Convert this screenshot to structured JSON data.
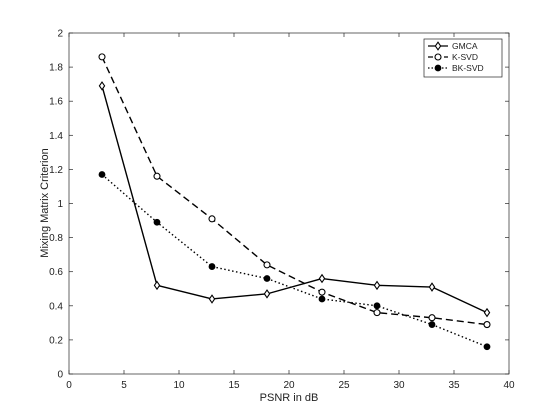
{
  "chart_data": {
    "type": "line",
    "title": "",
    "xlabel": "PSNR in dB",
    "ylabel": "Mixing Matrix Criterion",
    "xlim": [
      0,
      40
    ],
    "ylim": [
      0,
      2
    ],
    "xticks": [
      0,
      5,
      10,
      15,
      20,
      25,
      30,
      35,
      40
    ],
    "yticks": [
      0,
      0.2,
      0.4,
      0.6,
      0.8,
      1,
      1.2,
      1.4,
      1.6,
      1.8,
      2
    ],
    "xtick_labels": [
      "0",
      "5",
      "10",
      "15",
      "20",
      "25",
      "30",
      "35",
      "40"
    ],
    "ytick_labels": [
      "0",
      "0.2",
      "0.4",
      "0.6",
      "0.8",
      "1",
      "1.2",
      "1.4",
      "1.6",
      "1.8",
      "2"
    ],
    "grid": false,
    "legend_position": "top-right",
    "x": [
      3,
      8,
      13,
      18,
      23,
      28,
      33,
      38
    ],
    "series": [
      {
        "name": "GMCA",
        "values": [
          1.69,
          0.52,
          0.44,
          0.47,
          0.56,
          0.52,
          0.51,
          0.36
        ],
        "line_style": "solid",
        "marker": "diamond",
        "color": "#000000"
      },
      {
        "name": "K-SVD",
        "values": [
          1.86,
          1.16,
          0.91,
          0.64,
          0.48,
          0.36,
          0.33,
          0.29
        ],
        "line_style": "dashed",
        "marker": "open-circle",
        "color": "#000000"
      },
      {
        "name": "BK-SVD",
        "values": [
          1.17,
          0.89,
          0.63,
          0.56,
          0.44,
          0.4,
          0.29,
          0.16
        ],
        "line_style": "dotted",
        "marker": "filled-circle",
        "color": "#000000"
      }
    ]
  }
}
